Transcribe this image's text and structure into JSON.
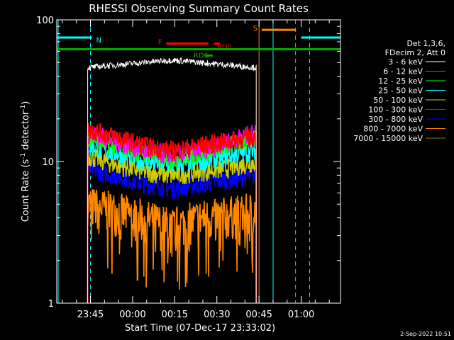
{
  "chart_data": {
    "type": "line",
    "title": "RHESSI Observing Summary Count Rates",
    "xlabel": "Start Time (07-Dec-17 23:33:02)",
    "ylabel_main": "Count Rate (s",
    "ylabel_sup": "-1",
    "ylabel_mid": " detector",
    "ylabel_end": ")",
    "yscale": "log",
    "ylim": [
      1,
      100
    ],
    "xlim_minutes": [
      -12,
      89
    ],
    "x_tick_labels": [
      {
        "label": "23:45",
        "t": 0
      },
      {
        "label": "00:00",
        "t": 15
      },
      {
        "label": "00:15",
        "t": 30
      },
      {
        "label": "00:30",
        "t": 45
      },
      {
        "label": "00:45",
        "t": 60
      },
      {
        "label": "01:00",
        "t": 75
      }
    ],
    "y_tick_labels": [
      {
        "label": "1",
        "v": 1
      },
      {
        "label": "10",
        "v": 10
      },
      {
        "label": "100",
        "v": 100
      }
    ],
    "legend_position": "top-right",
    "legend_header": [
      "Det 1,3,6,",
      "FDecim 2, Att 0"
    ],
    "series": [
      {
        "name": "3 - 6 keV",
        "color": "#ffffff",
        "profile": [
          46,
          48,
          50,
          52,
          50,
          48,
          46
        ]
      },
      {
        "name": "6 - 12 keV",
        "color": "#ff00ff",
        "profile": [
          16,
          14,
          12,
          11,
          12,
          14,
          16
        ]
      },
      {
        "name": "12 - 25 keV",
        "color": "#00ff00",
        "profile": [
          15,
          13,
          11.5,
          10.5,
          11.5,
          13,
          15
        ]
      },
      {
        "name": "25 - 50 keV",
        "color": "#00ffff",
        "profile": [
          13,
          11.5,
          10,
          9.5,
          10,
          11,
          12
        ]
      },
      {
        "name": "50 - 100 keV",
        "color": "#cccc00",
        "profile": [
          11,
          9.5,
          8.5,
          8,
          8.5,
          9,
          10
        ]
      },
      {
        "name": "100 - 300 keV",
        "color": "#ff0000",
        "profile": [
          17,
          15,
          13,
          12,
          13,
          14,
          15
        ]
      },
      {
        "name": "300 - 800 keV",
        "color": "#0000ff",
        "profile": [
          9,
          8,
          7,
          6.5,
          7,
          7.5,
          8
        ]
      },
      {
        "name": "800 - 7000 keV",
        "color": "#ff8800",
        "profile": [
          5,
          4.5,
          4,
          3.5,
          4,
          4.2,
          4.5
        ]
      },
      {
        "name": "7000 - 15000 keV",
        "color": "#808000",
        "profile": []
      }
    ],
    "series_t_range": [
      -1,
      59
    ],
    "flags": [
      {
        "label": "N",
        "color": "#00ffff",
        "y": 75,
        "t_start": -12,
        "t_end": 0.5
      },
      {
        "label": "S",
        "color": "#ff8800",
        "y": 85,
        "t_start": 61,
        "t_end": 73
      },
      {
        "label": "",
        "color": "#00ffff",
        "y": 75,
        "t_start": 75,
        "t_end": 89
      },
      {
        "label": "F",
        "color": "#ff0000",
        "y": 68,
        "t_start": 27,
        "t_end": 42
      },
      {
        "label": "RD0",
        "color": "#ff0000",
        "y": 68,
        "t_start": 44,
        "t_end": 46
      },
      {
        "label": "RD6",
        "color": "#00aa00",
        "y": 56,
        "t_start": 41,
        "t_end": 43.5
      },
      {
        "label": "",
        "color": "#00aa00",
        "y": 62,
        "t_start": -12,
        "t_end": 89
      }
    ],
    "vlines": [
      {
        "t": 60,
        "color": "#ff8800",
        "style": "solid"
      },
      {
        "t": 73,
        "color": "#ff8800",
        "style": "dashed"
      },
      {
        "t": 65,
        "color": "#00ffff",
        "style": "solid"
      },
      {
        "t": 78,
        "color": "#00ffff",
        "style": "dashed"
      },
      {
        "t": 0,
        "color": "#00ffff",
        "style": "dashed"
      },
      {
        "t": -11.5,
        "color": "#00ffff",
        "style": "solid"
      }
    ],
    "timestamp": "2-Sep-2022 10:51"
  }
}
